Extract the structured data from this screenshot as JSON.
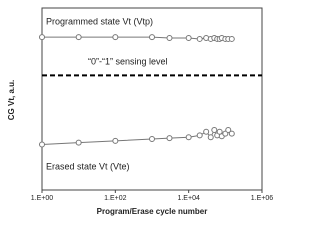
{
  "chart_data": {
    "type": "line",
    "xlabel": "Program/Erase cycle number",
    "ylabel": "CG Vt, a.u.",
    "annotations": [
      "Programmed state Vt   (Vtp)",
      "“0”-“1” sensing level",
      "Erased state Vt   (Vte)"
    ],
    "log_x": true,
    "xlim": [
      1,
      1000000
    ],
    "xticks": [
      {
        "value": 1,
        "label": "1.E+00"
      },
      {
        "value": 100,
        "label": "1.E+02"
      },
      {
        "value": 10000,
        "label": "1.E+04"
      },
      {
        "value": 1000000,
        "label": "1.E+06"
      }
    ],
    "ylim": [
      0,
      10
    ],
    "sensing_level": 6.3,
    "x": [
      1,
      10,
      100,
      1000,
      3000,
      10000,
      20000,
      30000,
      40000,
      50000,
      60000,
      70000,
      80000,
      100000,
      120000,
      150000
    ],
    "series": [
      {
        "name": "Vtp",
        "color": "#777777",
        "values": [
          8.4,
          8.4,
          8.4,
          8.4,
          8.35,
          8.35,
          8.3,
          8.35,
          8.3,
          8.35,
          8.3,
          8.3,
          8.35,
          8.3,
          8.3,
          8.3
        ]
      },
      {
        "name": "Vte",
        "color": "#777777",
        "values": [
          2.5,
          2.6,
          2.7,
          2.8,
          2.85,
          2.9,
          3.0,
          3.2,
          2.9,
          3.3,
          3.0,
          3.2,
          2.95,
          3.1,
          3.3,
          3.1
        ]
      }
    ]
  }
}
